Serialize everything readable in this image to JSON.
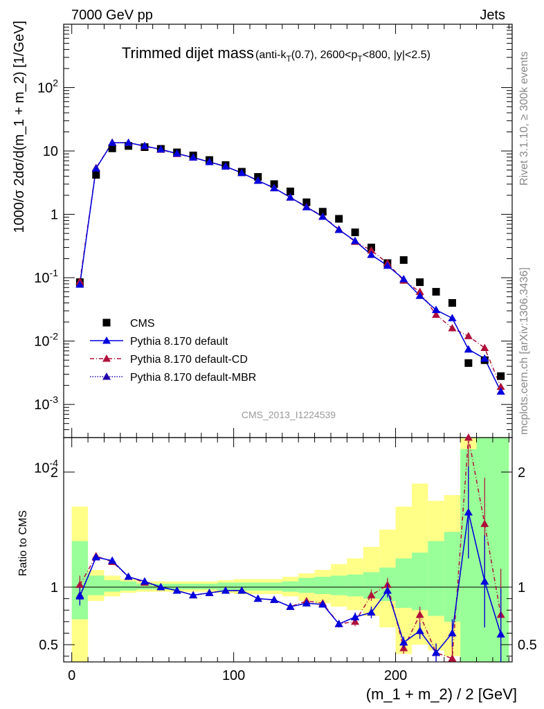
{
  "header": {
    "left": "7000 GeV pp",
    "right": "Jets"
  },
  "side_labels": {
    "rivet": "Rivet 3.1.10, ≥ 300k events",
    "mcplots": "mcplots.cern.ch [arXiv:1306.3436]"
  },
  "chart_data": [
    {
      "type": "scatter",
      "panel": "main",
      "title": "Trimmed dijet mass",
      "title_suffix": "(anti-kT(0.7), 2600<pT<800, |y|<2.5)",
      "watermark": "CMS_2013_I1224539",
      "ylabel": "1000/σ 2dσ/d(m_1 + m_2) [1/GeV]",
      "xlim": [
        -5,
        272
      ],
      "ylim": [
        0.0003,
        1000
      ],
      "yscale": "log",
      "y_tick_labels": [
        "10^-4",
        "10^-3",
        "10^-2",
        "10^-1",
        "1",
        "10",
        "10^2"
      ],
      "legend_position": "bottom-left",
      "x": [
        5,
        15,
        25,
        35,
        45,
        55,
        65,
        75,
        85,
        95,
        105,
        115,
        125,
        135,
        145,
        155,
        165,
        175,
        185,
        195,
        205,
        215,
        225,
        235,
        245,
        255,
        265
      ],
      "series": [
        {
          "name": "CMS",
          "color": "#000000",
          "marker": "square",
          "values": [
            0.085,
            4.2,
            11.0,
            12.0,
            11.5,
            10.8,
            9.5,
            8.5,
            7.2,
            6.0,
            4.7,
            3.9,
            3.0,
            2.3,
            1.55,
            1.1,
            0.85,
            0.52,
            0.3,
            0.17,
            0.19,
            0.085,
            0.06,
            0.04,
            0.0045,
            0.005,
            0.0028
          ]
        },
        {
          "name": "Pythia 8.170 default",
          "color": "#0000dd",
          "marker": "triangle",
          "line": "solid",
          "values": [
            0.078,
            5.3,
            13.5,
            13.5,
            12.0,
            10.6,
            9.1,
            7.9,
            6.7,
            5.7,
            4.5,
            3.4,
            2.6,
            1.85,
            1.3,
            0.92,
            0.57,
            0.38,
            0.23,
            0.155,
            0.095,
            0.052,
            0.031,
            0.023,
            0.0074,
            0.0053,
            0.0016
          ]
        },
        {
          "name": "Pythia 8.170 default-CD",
          "color": "#b0103a",
          "marker": "triangle",
          "line": "dashdot",
          "values": [
            0.087,
            5.4,
            13.6,
            13.4,
            11.9,
            10.5,
            9.0,
            7.9,
            6.7,
            5.7,
            4.5,
            3.4,
            2.6,
            1.85,
            1.32,
            0.93,
            0.58,
            0.37,
            0.27,
            0.17,
            0.09,
            0.06,
            0.026,
            0.016,
            0.012,
            0.0078,
            0.0019
          ]
        },
        {
          "name": "Pythia 8.170 default-MBR",
          "color": "#2200aa",
          "marker": "triangle",
          "line": "dotted",
          "values": [
            0.079,
            5.3,
            13.5,
            13.5,
            12.0,
            10.6,
            9.1,
            7.9,
            6.7,
            5.7,
            4.5,
            3.4,
            2.6,
            1.85,
            1.3,
            0.92,
            0.57,
            0.38,
            0.23,
            0.155,
            0.095,
            0.052,
            0.031,
            0.023,
            0.0074,
            0.0053,
            0.0016
          ]
        }
      ]
    },
    {
      "type": "line",
      "panel": "ratio",
      "xlabel": "(m_1 + m_2) / 2 [GeV]",
      "ylabel": "Ratio to CMS",
      "xlim": [
        -5,
        272
      ],
      "ylim": [
        0.35,
        2.3
      ],
      "x_tick_labels": [
        "0",
        "100",
        "200"
      ],
      "y_tick_labels": [
        "0.5",
        "1",
        "2"
      ],
      "band_colors": {
        "inner": "#99ff99",
        "outer": "#ffff88"
      },
      "band_inner": [
        [
          0.72,
          1.4
        ],
        [
          0.93,
          1.1
        ],
        [
          0.96,
          1.06
        ],
        [
          0.97,
          1.05
        ],
        [
          0.98,
          1.03
        ],
        [
          0.98,
          1.03
        ],
        [
          0.98,
          1.03
        ],
        [
          0.98,
          1.03
        ],
        [
          0.98,
          1.03
        ],
        [
          0.97,
          1.04
        ],
        [
          0.97,
          1.04
        ],
        [
          0.97,
          1.04
        ],
        [
          0.97,
          1.04
        ],
        [
          0.96,
          1.05
        ],
        [
          0.95,
          1.08
        ],
        [
          0.94,
          1.09
        ],
        [
          0.93,
          1.1
        ],
        [
          0.92,
          1.11
        ],
        [
          0.9,
          1.13
        ],
        [
          0.88,
          1.17
        ],
        [
          0.82,
          1.25
        ],
        [
          0.8,
          1.3
        ],
        [
          0.75,
          1.4
        ],
        [
          0.7,
          1.48
        ],
        [
          0.35,
          2.2
        ],
        [
          0.35,
          2.3
        ],
        [
          0.35,
          2.3
        ]
      ],
      "band_outer": [
        [
          0.35,
          1.7
        ],
        [
          0.88,
          1.15
        ],
        [
          0.92,
          1.1
        ],
        [
          0.95,
          1.07
        ],
        [
          0.96,
          1.05
        ],
        [
          0.96,
          1.05
        ],
        [
          0.96,
          1.05
        ],
        [
          0.96,
          1.05
        ],
        [
          0.96,
          1.05
        ],
        [
          0.95,
          1.06
        ],
        [
          0.94,
          1.07
        ],
        [
          0.94,
          1.07
        ],
        [
          0.94,
          1.07
        ],
        [
          0.92,
          1.09
        ],
        [
          0.88,
          1.12
        ],
        [
          0.86,
          1.15
        ],
        [
          0.83,
          1.2
        ],
        [
          0.8,
          1.25
        ],
        [
          0.75,
          1.35
        ],
        [
          0.65,
          1.5
        ],
        [
          0.42,
          1.7
        ],
        [
          0.5,
          1.9
        ],
        [
          0.45,
          1.75
        ],
        [
          0.4,
          1.8
        ],
        [
          0.35,
          2.3
        ],
        [
          0.35,
          2.3
        ],
        [
          0.35,
          2.3
        ]
      ],
      "x": [
        5,
        15,
        25,
        35,
        45,
        55,
        65,
        75,
        85,
        95,
        105,
        115,
        125,
        135,
        145,
        155,
        165,
        175,
        185,
        195,
        205,
        215,
        225,
        235,
        245,
        255,
        265
      ],
      "series": [
        {
          "name": "Pythia 8.170 default",
          "color": "#0000dd",
          "line": "solid",
          "values": [
            0.92,
            1.26,
            1.23,
            1.09,
            1.05,
            1.0,
            0.97,
            0.93,
            0.95,
            0.97,
            0.97,
            0.9,
            0.89,
            0.83,
            0.86,
            0.85,
            0.68,
            0.74,
            0.78,
            0.97,
            0.52,
            0.62,
            0.43,
            0.6,
            1.65,
            1.05,
            0.59
          ],
          "errors": [
            0.08,
            0.02,
            0.02,
            0.02,
            0.02,
            0.01,
            0.01,
            0.01,
            0.01,
            0.01,
            0.01,
            0.01,
            0.01,
            0.01,
            0.02,
            0.02,
            0.03,
            0.04,
            0.05,
            0.06,
            0.05,
            0.07,
            0.08,
            0.12,
            0.4,
            0.4,
            0.4
          ]
        },
        {
          "name": "Pythia 8.170 default-CD",
          "color": "#b0103a",
          "line": "dashdot",
          "values": [
            1.02,
            1.27,
            1.22,
            1.09,
            1.04,
            1.0,
            0.97,
            0.93,
            0.95,
            0.97,
            0.97,
            0.9,
            0.89,
            0.83,
            0.88,
            0.86,
            0.68,
            0.7,
            0.93,
            1.02,
            0.47,
            0.76,
            0.43,
            0.38,
            2.3,
            1.55,
            0.76
          ],
          "errors": [
            0.08,
            0.02,
            0.02,
            0.02,
            0.02,
            0.01,
            0.01,
            0.01,
            0.01,
            0.01,
            0.01,
            0.01,
            0.01,
            0.01,
            0.02,
            0.02,
            0.03,
            0.04,
            0.05,
            0.06,
            0.05,
            0.07,
            0.08,
            0.12,
            0.4,
            0.4,
            0.4
          ]
        },
        {
          "name": "Pythia 8.170 default-MBR",
          "color": "#2200aa",
          "line": "dotted",
          "values": [
            0.93,
            1.26,
            1.23,
            1.09,
            1.05,
            1.0,
            0.97,
            0.93,
            0.95,
            0.97,
            0.97,
            0.9,
            0.89,
            0.83,
            0.86,
            0.85,
            0.68,
            0.74,
            0.78,
            0.97,
            0.52,
            0.62,
            0.43,
            0.6,
            1.65,
            1.05,
            0.59
          ],
          "errors": [
            0.08,
            0.02,
            0.02,
            0.02,
            0.02,
            0.01,
            0.01,
            0.01,
            0.01,
            0.01,
            0.01,
            0.01,
            0.01,
            0.01,
            0.02,
            0.02,
            0.03,
            0.04,
            0.05,
            0.06,
            0.05,
            0.07,
            0.08,
            0.12,
            0.4,
            0.4,
            0.4
          ]
        }
      ]
    }
  ]
}
